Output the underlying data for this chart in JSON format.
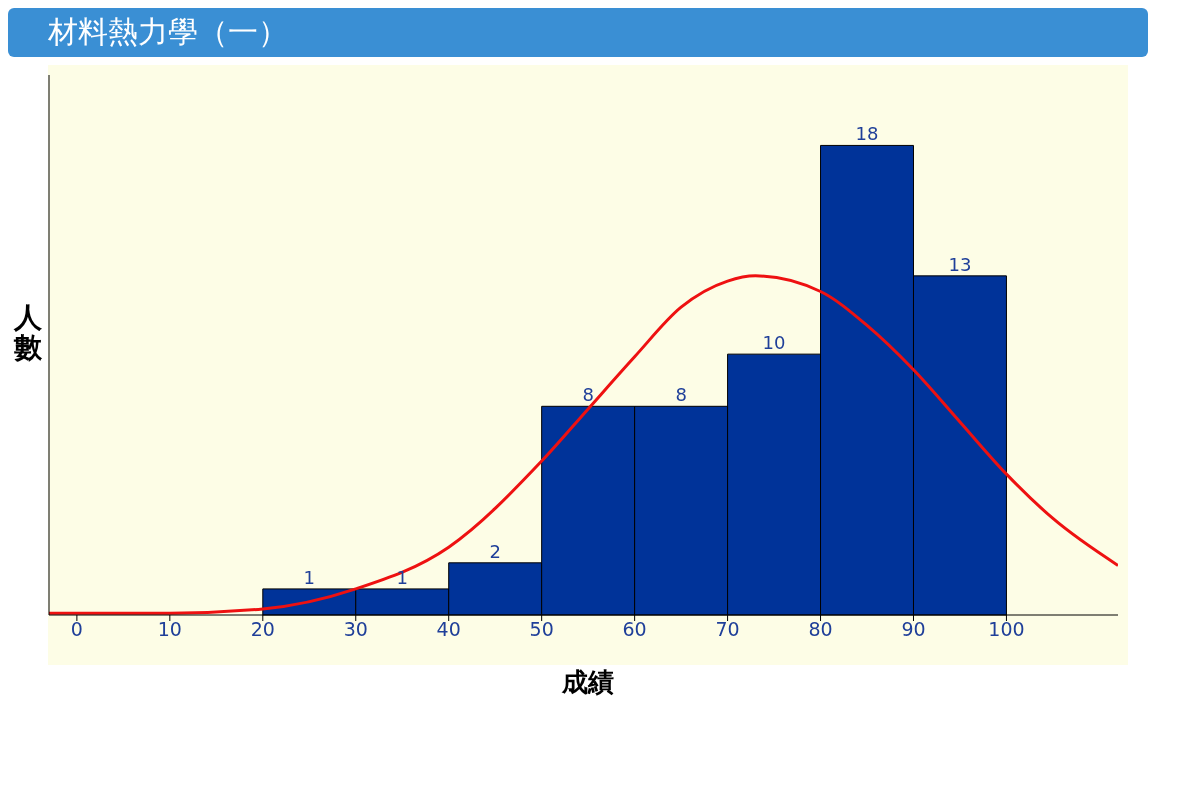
{
  "chart_data": {
    "type": "histogram",
    "title": "材料熱力學（一）",
    "xlabel": "成績",
    "ylabel": "人數",
    "bins": [
      20,
      30,
      40,
      50,
      60,
      70,
      80,
      90,
      100
    ],
    "values": [
      1,
      1,
      2,
      8,
      8,
      10,
      18,
      13
    ],
    "color": "#003399",
    "value_labels": [
      "1",
      "1",
      "2",
      "8",
      "8",
      "10",
      "18",
      "13"
    ],
    "series": [
      {
        "type": "line",
        "color": "#ee1111",
        "x": [
          -3,
          0,
          10,
          20,
          30,
          40,
          50,
          55,
          60,
          65,
          70,
          73,
          80,
          85,
          90,
          95,
          100,
          105,
          112
        ],
        "values": [
          0.07,
          0.07,
          0.07,
          0.23,
          1.0,
          2.6,
          5.9,
          7.9,
          9.9,
          11.8,
          12.8,
          13.0,
          12.4,
          11.1,
          9.4,
          7.4,
          5.4,
          3.7,
          1.9
        ]
      }
    ],
    "xlim": [
      -3,
      112
    ],
    "xticks": [
      0,
      10,
      20,
      30,
      40,
      50,
      60,
      70,
      80,
      90,
      100
    ],
    "ylim": [
      0,
      20.7
    ],
    "tick_labels": "x",
    "marker": "none",
    "line_style": "solid"
  }
}
